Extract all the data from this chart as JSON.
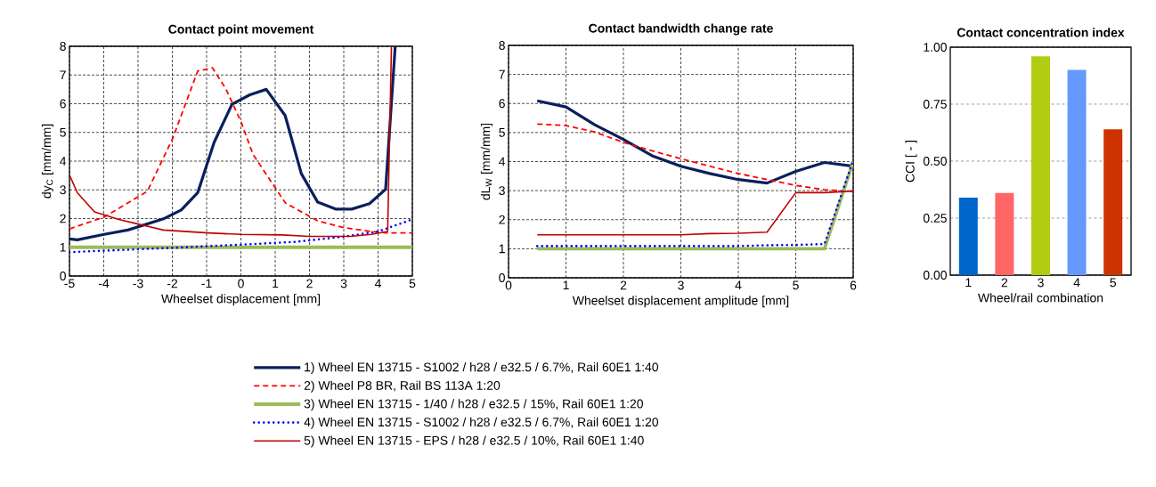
{
  "chart_data": [
    {
      "type": "line",
      "title": "Contact point movement",
      "xlabel": "Wheelset displacement [mm]",
      "ylabel": "dy$_{C}$  [mm/mm]",
      "xlim": [
        -5,
        5
      ],
      "ylim": [
        0,
        8
      ],
      "xticks": [
        -5,
        -4,
        -3,
        -2,
        -1,
        0,
        1,
        2,
        3,
        4,
        5
      ],
      "yticks": [
        0,
        1,
        2,
        3,
        4,
        5,
        6,
        7,
        8
      ],
      "grid": true,
      "legend": "bottom",
      "series": [
        {
          "name": "1)  Wheel EN 13715 - S1002 / h28 / e32.5 / 6.7%, Rail 60E1 1:40",
          "color": "#0a1f5c",
          "line_style": "solid",
          "x": [
            -5,
            -4.77,
            -3.99,
            -3.3,
            -3,
            -2.26,
            -1.74,
            -1.26,
            -0.78,
            -0.26,
            0.26,
            0.74,
            1.29,
            1.76,
            2.24,
            2.76,
            3.23,
            3.75,
            4.22,
            4.5
          ],
          "values": [
            1.29,
            1.26,
            1.45,
            1.6,
            1.71,
            1.99,
            2.3,
            2.9,
            4.66,
            5.98,
            6.31,
            6.5,
            5.59,
            3.57,
            2.57,
            2.33,
            2.33,
            2.52,
            3.02,
            8.0
          ]
        },
        {
          "name": "2)  Wheel P8 BR, Rail BS 113A 1:20",
          "color": "#ff0000",
          "line_style": "dashed",
          "x": [
            -5,
            -3.99,
            -2.73,
            -2,
            -1.26,
            -0.83,
            -0.44,
            0,
            0.35,
            1.04,
            1.3,
            2.24,
            3.02,
            3.8,
            4.24,
            5
          ],
          "values": [
            1.64,
            2.05,
            2.95,
            4.76,
            7.14,
            7.25,
            6.52,
            5.38,
            4.24,
            3.0,
            2.54,
            1.92,
            1.68,
            1.55,
            1.5,
            1.5
          ]
        },
        {
          "name": "3)  Wheel EN 13715 - 1/40 / h28 / e32.5 / 15%, Rail 60E1 1:20",
          "color": "#9bbb59",
          "line_style": "solid",
          "x": [
            -5,
            5
          ],
          "values": [
            1.0,
            1.0
          ]
        },
        {
          "name": "4)  Wheel EN 13715 - S1002 / h28 / e32.5 / 6.7%, Rail 60E1 1:20",
          "color": "#0000ff",
          "line_style": "dotted",
          "x": [
            -5,
            -4,
            -2,
            0,
            1.6,
            3,
            4,
            5
          ],
          "values": [
            0.83,
            0.88,
            0.98,
            1.09,
            1.19,
            1.37,
            1.55,
            1.97
          ]
        },
        {
          "name": "5)  Wheel EN 13715 - EPS / h28 / e32.5 / 10%, Rail 60E1 1:40",
          "color": "#c00000",
          "line_style": "solid",
          "x": [
            -5,
            -4.77,
            -4.27,
            -3.56,
            -3,
            -2.26,
            -0.95,
            0,
            1.21,
            1.99,
            3.2,
            3.8,
            4.28,
            4.39
          ],
          "values": [
            3.52,
            2.9,
            2.23,
            1.97,
            1.81,
            1.6,
            1.5,
            1.45,
            1.43,
            1.38,
            1.38,
            1.45,
            1.55,
            8.0
          ]
        }
      ]
    },
    {
      "type": "line",
      "title": "Contact bandwidth change rate",
      "xlabel": "Wheelset displacement amplitude [mm]",
      "ylabel": "dL$_{W}$  [mm/mm]",
      "xlim": [
        0,
        6
      ],
      "ylim": [
        0,
        8
      ],
      "xticks": [
        0,
        1,
        2,
        3,
        4,
        5,
        6
      ],
      "yticks": [
        0,
        1,
        2,
        3,
        4,
        5,
        6,
        7,
        8
      ],
      "grid": true,
      "series": [
        {
          "color": "#0a1f5c",
          "line_style": "solid",
          "x": [
            0.5,
            1,
            1.5,
            2,
            2.5,
            3,
            3.5,
            4,
            4.5,
            5,
            5.5,
            6
          ],
          "values": [
            6.09,
            5.88,
            5.27,
            4.76,
            4.2,
            3.84,
            3.59,
            3.38,
            3.26,
            3.66,
            3.97,
            3.84
          ]
        },
        {
          "color": "#ff0000",
          "line_style": "dashed",
          "x": [
            0.5,
            1,
            1.5,
            2,
            2.5,
            3,
            3.5,
            4,
            4.5,
            5,
            5.5,
            6
          ],
          "values": [
            5.29,
            5.24,
            5.02,
            4.66,
            4.37,
            4.1,
            3.84,
            3.59,
            3.38,
            3.18,
            3.03,
            2.98
          ]
        },
        {
          "color": "#9bbb59",
          "line_style": "solid",
          "x": [
            0.5,
            5.5,
            6
          ],
          "values": [
            1.0,
            1.0,
            4.0
          ]
        },
        {
          "color": "#0000ff",
          "line_style": "dotted",
          "x": [
            0.5,
            4,
            4.5,
            5,
            5.5,
            6
          ],
          "values": [
            1.09,
            1.09,
            1.12,
            1.13,
            1.16,
            4.05
          ]
        },
        {
          "color": "#c00000",
          "line_style": "solid",
          "x": [
            0.5,
            3,
            3.5,
            4,
            4.5,
            5,
            5.5,
            6
          ],
          "values": [
            1.48,
            1.48,
            1.52,
            1.53,
            1.57,
            2.93,
            2.93,
            2.98
          ]
        }
      ]
    },
    {
      "type": "bar",
      "title": "Contact concentration index",
      "xlabel": "Wheel/rail combination",
      "ylabel": "CCI  [ - ]",
      "categories": [
        "1",
        "2",
        "3",
        "4",
        "5"
      ],
      "values": [
        0.34,
        0.36,
        0.96,
        0.9,
        0.64
      ],
      "colors": [
        "#0066cc",
        "#ff6666",
        "#b2cc12",
        "#6699ff",
        "#cc3300"
      ],
      "ylim": [
        0,
        1
      ],
      "yticks": [
        {
          "value": 0,
          "label": "0.00"
        },
        {
          "value": 0.25,
          "label": "0.25"
        },
        {
          "value": 0.5,
          "label": "0.50"
        },
        {
          "value": 0.75,
          "label": "0.75"
        },
        {
          "value": 1,
          "label": "1.00"
        }
      ],
      "grid": "y"
    }
  ]
}
